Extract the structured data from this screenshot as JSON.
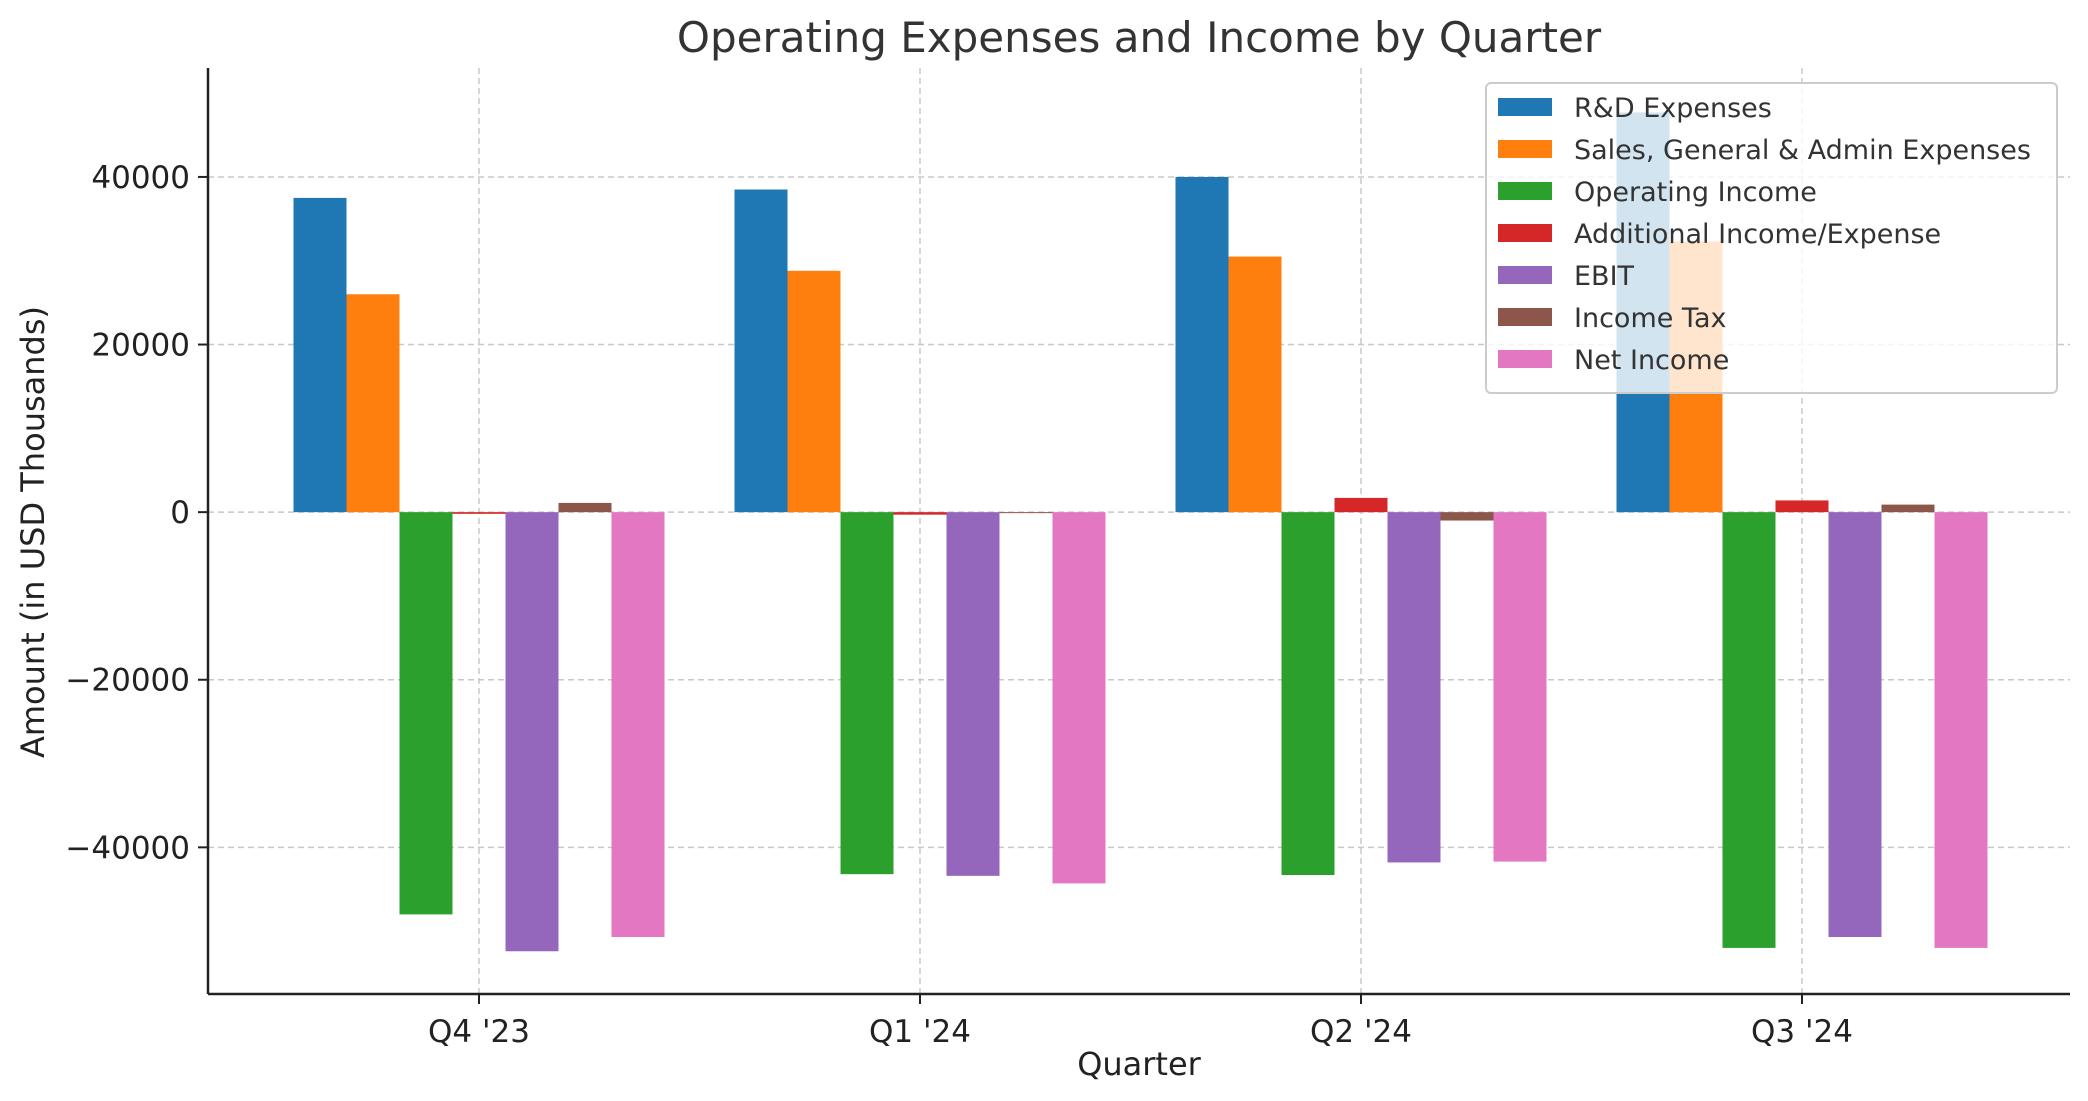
{
  "chart_data": {
    "type": "bar",
    "title": "Operating Expenses and Income by Quarter",
    "xlabel": "Quarter",
    "ylabel": "Amount (in USD Thousands)",
    "categories": [
      "Q4 '23",
      "Q1 '24",
      "Q2 '24",
      "Q3 '24"
    ],
    "ylim": [
      -57500,
      53000
    ],
    "yticks": [
      -40000,
      -20000,
      0,
      20000,
      40000
    ],
    "ytick_labels": [
      "−40000",
      "−20000",
      "0",
      "20000",
      "40000"
    ],
    "grid": true,
    "legend_position": "top-right",
    "series": [
      {
        "name": "R&D Expenses",
        "color": "#1f77b4",
        "values": [
          37500,
          38500,
          40000,
          47700
        ]
      },
      {
        "name": "Sales, General & Admin Expenses",
        "color": "#ff7f0e",
        "values": [
          26000,
          28800,
          30500,
          32300
        ]
      },
      {
        "name": "Operating Income",
        "color": "#2ca02c",
        "values": [
          -48000,
          -43200,
          -43300,
          -52000
        ]
      },
      {
        "name": "Additional Income/Expense",
        "color": "#d62728",
        "values": [
          -200,
          -300,
          1700,
          1400
        ]
      },
      {
        "name": "EBIT",
        "color": "#9467bd",
        "values": [
          -52400,
          -43400,
          -41800,
          -50700
        ]
      },
      {
        "name": "Income Tax",
        "color": "#8c564b",
        "values": [
          1100,
          0,
          -1000,
          900
        ]
      },
      {
        "name": "Net Income",
        "color": "#e377c2",
        "values": [
          -50700,
          -44300,
          -41700,
          -52000
        ]
      }
    ]
  }
}
